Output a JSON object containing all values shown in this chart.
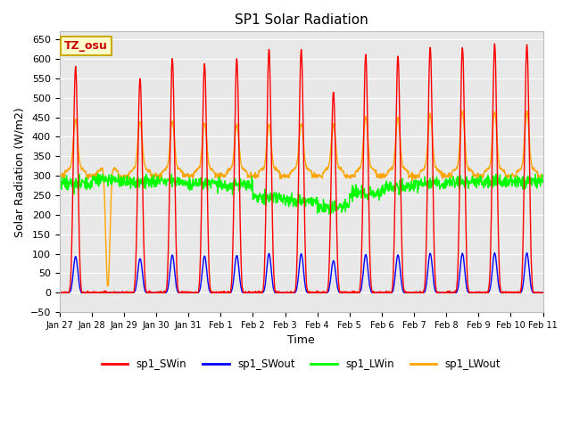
{
  "title": "SP1 Solar Radiation",
  "xlabel": "Time",
  "ylabel": "Solar Radiation (W/m2)",
  "ylim": [
    -50,
    670
  ],
  "yticks": [
    -50,
    0,
    50,
    100,
    150,
    200,
    250,
    300,
    350,
    400,
    450,
    500,
    550,
    600,
    650
  ],
  "bg_color": "#e8e8e8",
  "fig_color": "#ffffff",
  "tz_label": "TZ_osu",
  "legend_entries": [
    "sp1_SWin",
    "sp1_SWout",
    "sp1_LWin",
    "sp1_LWout"
  ],
  "line_colors": [
    "#ff0000",
    "#0000ff",
    "#00ff00",
    "#ffa500"
  ],
  "n_days": 15,
  "dt_hours": 0.25,
  "sw_peaks": [
    580,
    0,
    550,
    600,
    585,
    600,
    622,
    624,
    515,
    610,
    605,
    630,
    630,
    637,
    637
  ],
  "lw_peaks": [
    430,
    0,
    425,
    425,
    420,
    415,
    415,
    420,
    415,
    435,
    435,
    445,
    450,
    450,
    450
  ]
}
